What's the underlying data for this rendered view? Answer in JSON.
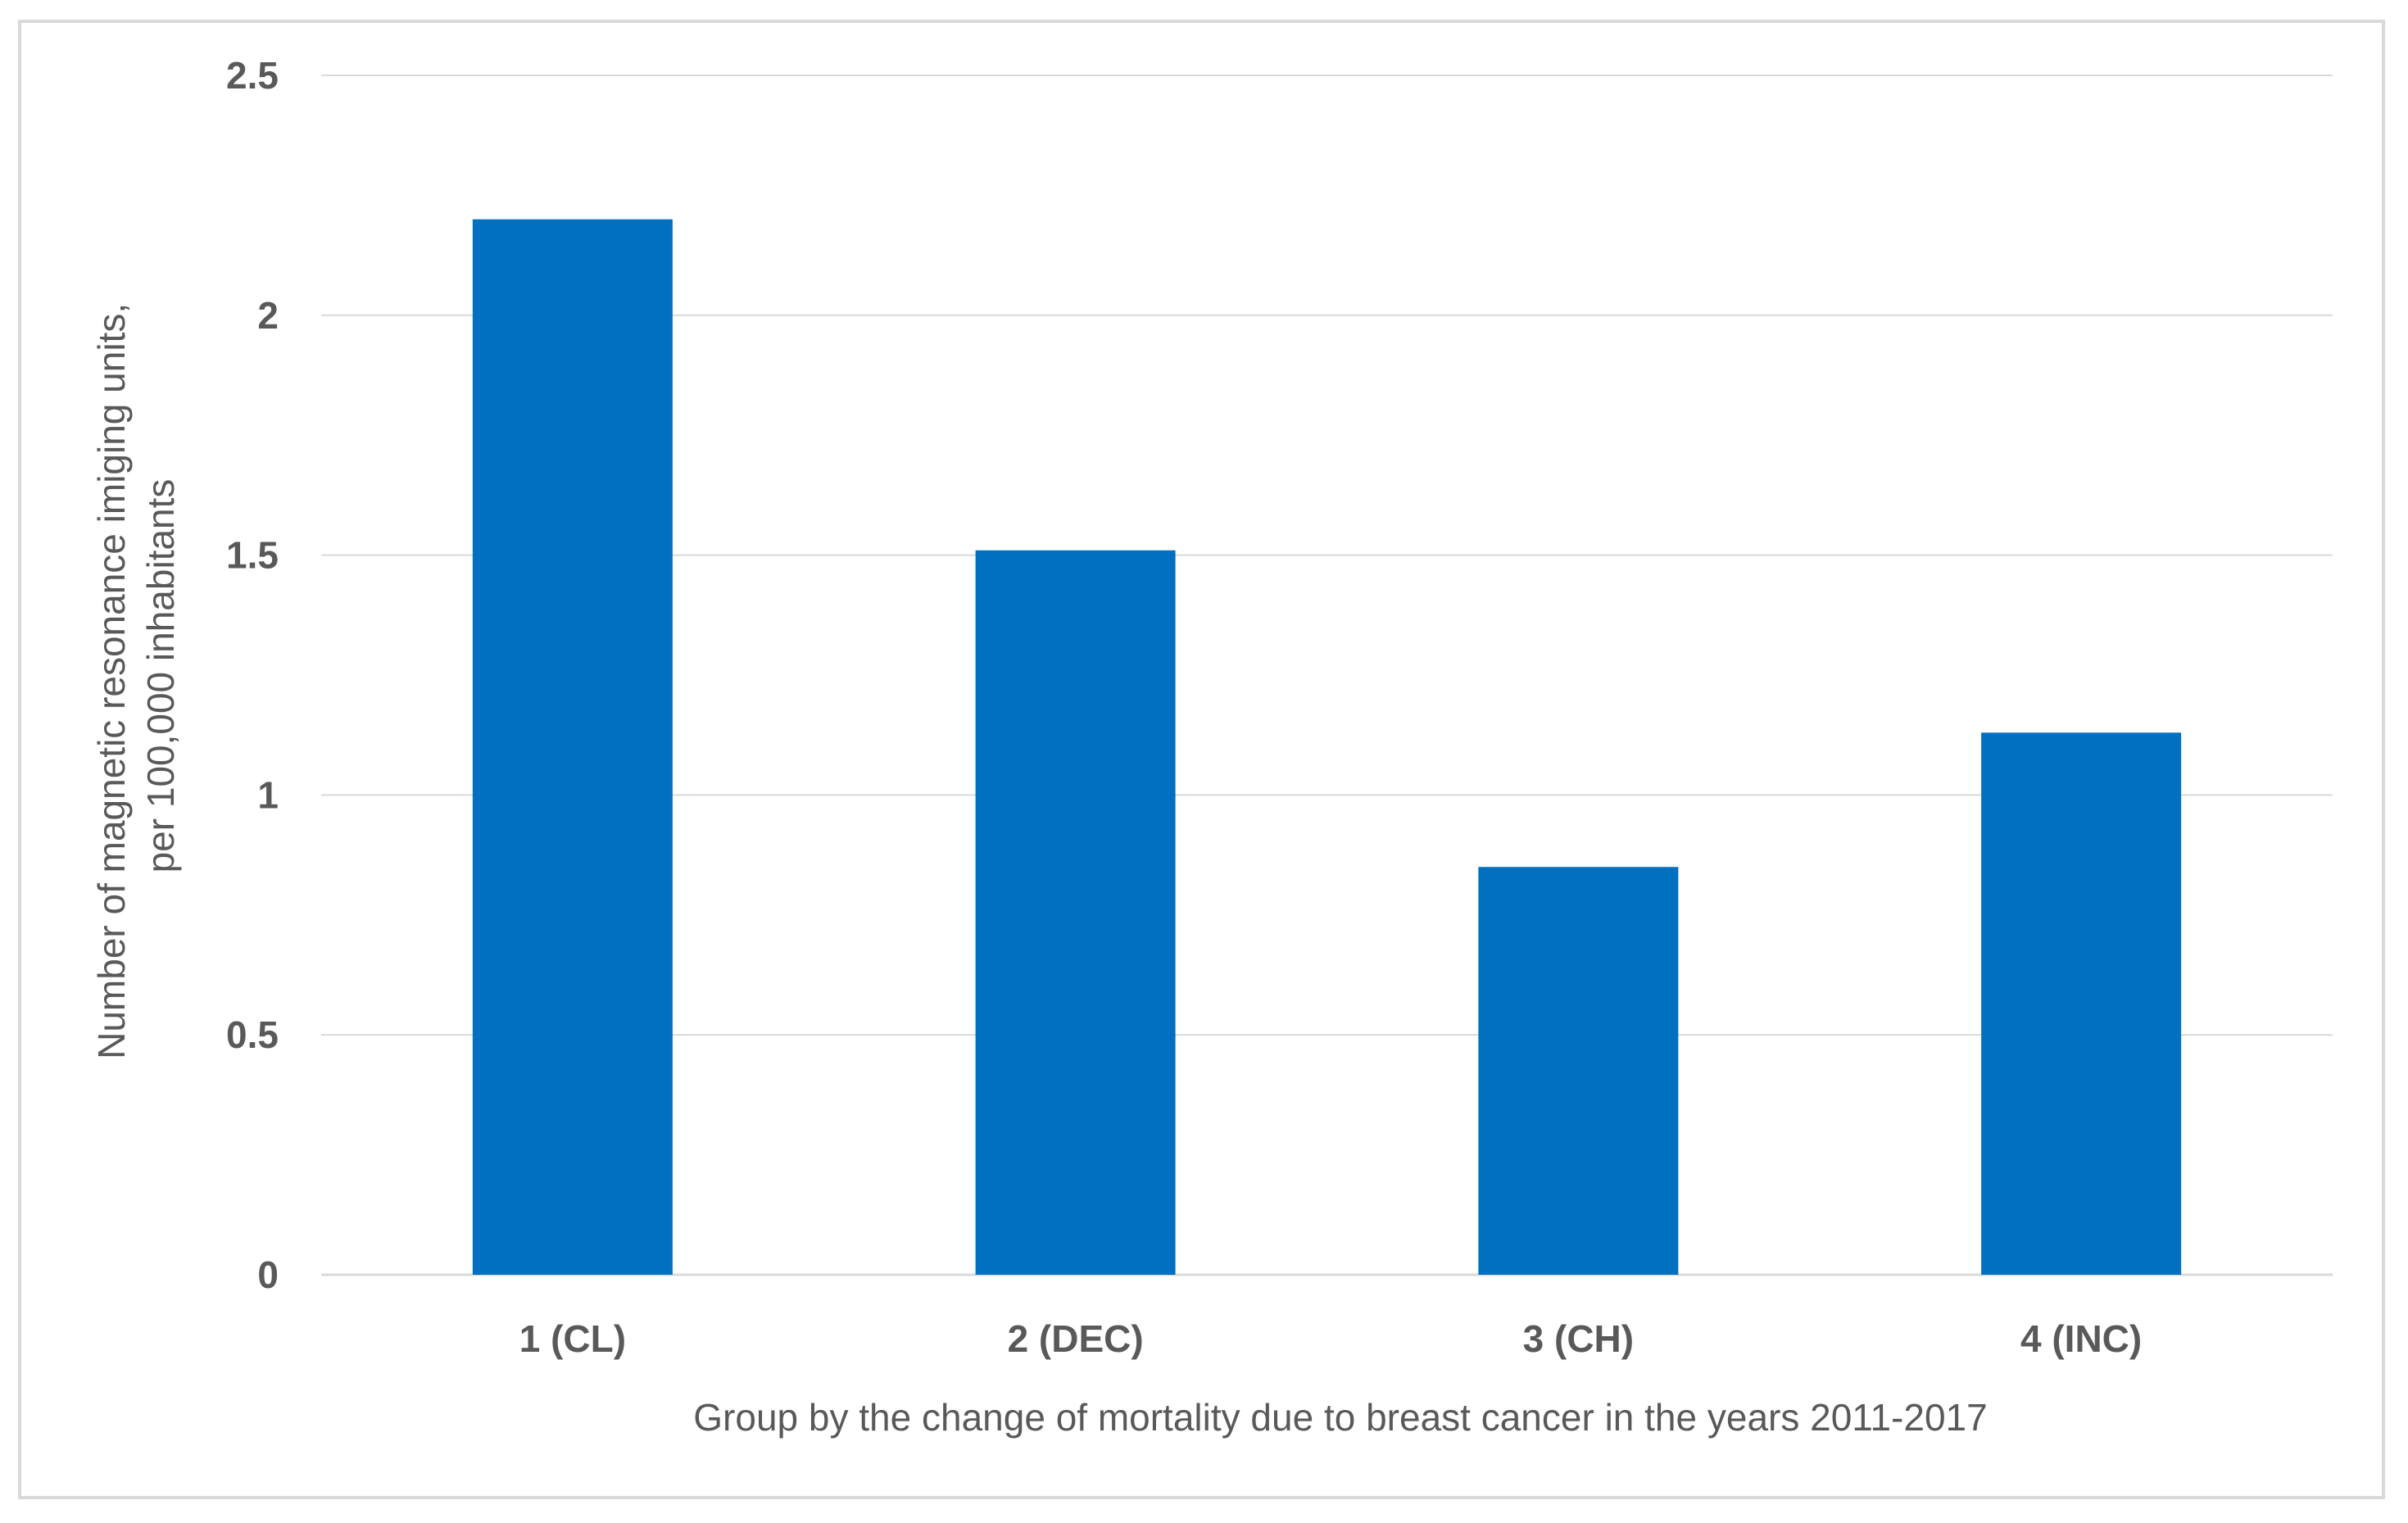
{
  "chart_data": {
    "type": "bar",
    "categories": [
      "1 (CL)",
      "2 (DEC)",
      "3 (CH)",
      "4 (INC)"
    ],
    "values": [
      2.2,
      1.51,
      0.85,
      1.13
    ],
    "xlabel": "Group by the change of mortality due to breast cancer in the years 2011-2017",
    "ylabel_line1": "Number of magnetic resonance imiging units,",
    "ylabel_line2": "per 100,000 inhabitants",
    "ylim": [
      0,
      2.5
    ],
    "yticks": [
      "0",
      "0.5",
      "1",
      "1.5",
      "2",
      "2.5"
    ],
    "ytick_values": [
      0,
      0.5,
      1,
      1.5,
      2,
      2.5
    ],
    "grid": true,
    "bar_color": "#0070C0",
    "grid_color": "#d9d9d9"
  }
}
